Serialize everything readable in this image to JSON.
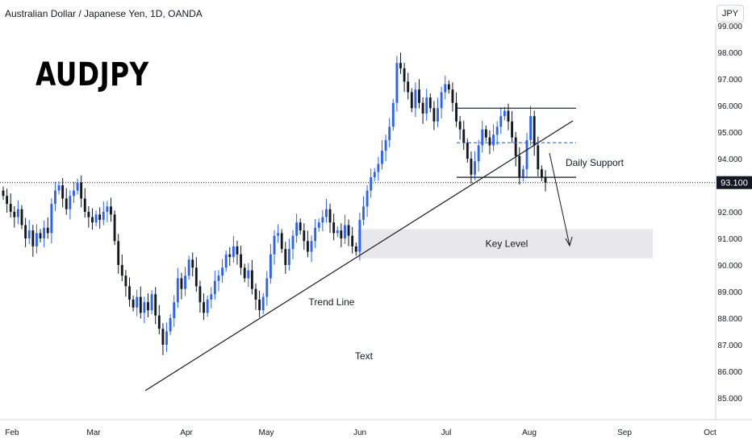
{
  "header": {
    "symbol_title": "Australian Dollar / Japanese Yen, 1D, OANDA",
    "big_label": "AUDJPY",
    "currency_button": "JPY"
  },
  "colors": {
    "up": "#2962ff",
    "down": "#131722",
    "grid_axis": "#d1d4dc",
    "price_tag_bg": "#131722",
    "key_zone": "#e8e8ea",
    "dashed_level": "#2962ff"
  },
  "chart_data": {
    "type": "candlestick",
    "title": "Australian Dollar / Japanese Yen, 1D, OANDA",
    "ylim": [
      84.6,
      99.5
    ],
    "y_ticks": [
      "85.000",
      "86.000",
      "87.000",
      "88.000",
      "89.000",
      "90.000",
      "91.000",
      "92.000",
      "93.000",
      "94.000",
      "95.000",
      "96.000",
      "97.000",
      "98.000",
      "99.000"
    ],
    "x_ticks": [
      "Feb",
      "Mar",
      "Apr",
      "May",
      "Jun",
      "Jul",
      "Aug",
      "Sep",
      "Oct"
    ],
    "last_price": "93.100",
    "last_price_value": 93.1,
    "closes": [
      92.6,
      92.3,
      92.0,
      91.8,
      92.1,
      91.5,
      91.0,
      91.3,
      90.7,
      91.2,
      91.0,
      91.4,
      91.2,
      92.3,
      92.8,
      93.0,
      92.5,
      92.1,
      92.6,
      92.8,
      93.1,
      92.5,
      92.0,
      91.8,
      91.6,
      91.9,
      91.7,
      92.0,
      92.2,
      91.9,
      90.9,
      90.0,
      89.6,
      89.2,
      88.7,
      88.4,
      88.8,
      88.2,
      88.6,
      88.3,
      88.9,
      88.1,
      87.6,
      87.0,
      87.5,
      88.0,
      88.6,
      89.5,
      89.1,
      89.6,
      90.2,
      89.9,
      89.2,
      88.6,
      88.2,
      88.7,
      88.9,
      89.4,
      89.6,
      89.9,
      90.4,
      90.3,
      90.7,
      90.4,
      89.9,
      89.5,
      89.8,
      89.1,
      88.7,
      88.3,
      88.8,
      89.5,
      90.4,
      91.1,
      91.2,
      90.6,
      90.0,
      90.6,
      91.1,
      91.6,
      91.3,
      90.9,
      90.5,
      90.9,
      91.4,
      91.6,
      91.8,
      92.1,
      91.6,
      91.2,
      91.3,
      91.0,
      91.5,
      91.1,
      90.7,
      90.5,
      91.7,
      92.2,
      92.8,
      93.3,
      93.5,
      93.8,
      94.3,
      94.7,
      95.2,
      96.1,
      97.6,
      97.4,
      96.9,
      96.5,
      95.9,
      96.6,
      96.1,
      95.7,
      96.3,
      95.9,
      95.4,
      95.9,
      96.5,
      96.8,
      96.6,
      96.1,
      95.4,
      95.1,
      94.6,
      94.0,
      93.4,
      93.9,
      94.5,
      95.1,
      94.8,
      94.5,
      94.9,
      95.2,
      95.6,
      95.8,
      95.4,
      94.8,
      94.1,
      93.3,
      93.6,
      94.7,
      95.6,
      94.5,
      93.6,
      93.3,
      93.1
    ],
    "annotations": {
      "trend_line_label": "Trend Line",
      "daily_support_label": "Daily Support",
      "key_level_label": "Key Level",
      "text_label": "Text"
    },
    "levels": {
      "range_top": 95.9,
      "range_bottom": 93.3,
      "range_mid_dashed": 94.6,
      "key_zone": [
        90.25,
        91.35
      ]
    }
  }
}
